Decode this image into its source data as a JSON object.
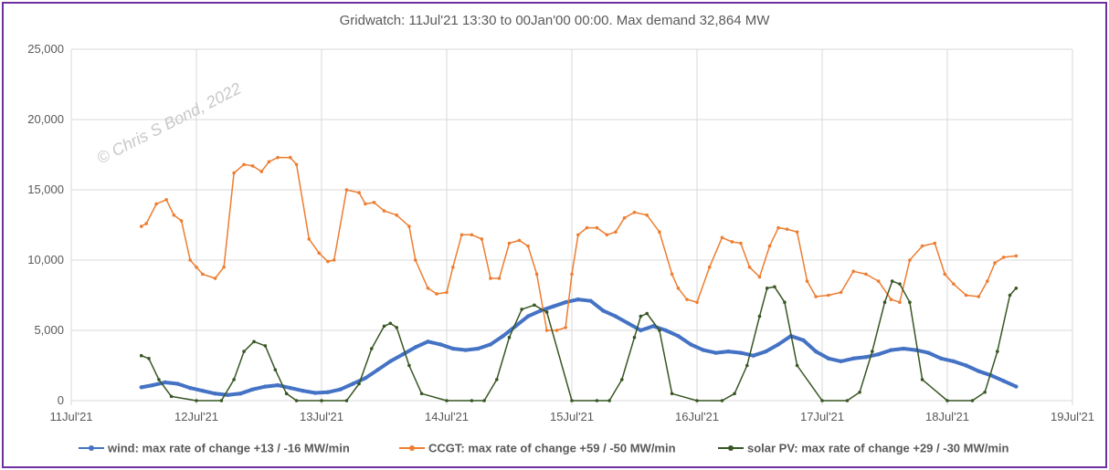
{
  "chart_data": {
    "type": "line",
    "title": "Gridwatch:  11Jul'21 13:30  to 00Jan'00 00:00.   Max demand 32,864 MW",
    "watermark": "© Chris S Bond, 2022",
    "ylim": [
      0,
      25000
    ],
    "yticks": [
      "0",
      "5,000",
      "10,000",
      "15,000",
      "20,000",
      "25,000"
    ],
    "ytick_values": [
      0,
      5000,
      10000,
      15000,
      20000,
      25000
    ],
    "xlim": [
      0,
      8
    ],
    "xticks": [
      "11Jul'21",
      "12Jul'21",
      "13Jul'21",
      "14Jul'21",
      "15Jul'21",
      "16Jul'21",
      "17Jul'21",
      "18Jul'21",
      "19Jul'21"
    ],
    "grid": true,
    "legend_position": "bottom",
    "series": [
      {
        "name": "wind: max rate of change +13 / -16 MW/min",
        "color": "#4472c4",
        "x": [
          0.56,
          0.65,
          0.75,
          0.85,
          0.95,
          1.05,
          1.15,
          1.25,
          1.35,
          1.45,
          1.55,
          1.65,
          1.75,
          1.85,
          1.95,
          2.05,
          2.15,
          2.25,
          2.35,
          2.45,
          2.55,
          2.65,
          2.75,
          2.85,
          2.95,
          3.05,
          3.15,
          3.25,
          3.35,
          3.45,
          3.55,
          3.65,
          3.75,
          3.85,
          3.95,
          4.05,
          4.15,
          4.25,
          4.35,
          4.45,
          4.55,
          4.65,
          4.75,
          4.85,
          4.95,
          5.05,
          5.15,
          5.25,
          5.35,
          5.45,
          5.55,
          5.65,
          5.75,
          5.85,
          5.95,
          6.05,
          6.15,
          6.25,
          6.35,
          6.45,
          6.55,
          6.65,
          6.75,
          6.85,
          6.95,
          7.05,
          7.15,
          7.25,
          7.35,
          7.45,
          7.55
        ],
        "values": [
          950,
          1100,
          1300,
          1200,
          900,
          700,
          500,
          400,
          500,
          800,
          1000,
          1100,
          900,
          700,
          550,
          600,
          800,
          1200,
          1600,
          2200,
          2800,
          3300,
          3800,
          4200,
          4000,
          3700,
          3600,
          3700,
          4000,
          4600,
          5300,
          6000,
          6400,
          6700,
          7000,
          7200,
          7100,
          6400,
          6000,
          5500,
          5000,
          5300,
          5000,
          4600,
          4000,
          3600,
          3400,
          3500,
          3400,
          3200,
          3500,
          4000,
          4600,
          4300,
          3500,
          3000,
          2800,
          3000,
          3100,
          3300,
          3600,
          3700,
          3600,
          3400,
          3000,
          2800,
          2500,
          2100,
          1800,
          1400,
          1000
        ]
      },
      {
        "name": "CCGT: max rate of change +59 / -50 MW/min",
        "color": "#ed7d31",
        "x": [
          0.56,
          0.6,
          0.68,
          0.76,
          0.82,
          0.88,
          0.95,
          1.0,
          1.05,
          1.15,
          1.22,
          1.3,
          1.38,
          1.45,
          1.52,
          1.58,
          1.65,
          1.75,
          1.8,
          1.9,
          1.98,
          2.05,
          2.1,
          2.2,
          2.3,
          2.35,
          2.42,
          2.5,
          2.6,
          2.7,
          2.75,
          2.85,
          2.92,
          3.0,
          3.05,
          3.12,
          3.2,
          3.28,
          3.35,
          3.42,
          3.5,
          3.58,
          3.65,
          3.72,
          3.8,
          3.88,
          3.95,
          4.0,
          4.05,
          4.12,
          4.2,
          4.28,
          4.35,
          4.42,
          4.5,
          4.6,
          4.7,
          4.8,
          4.85,
          4.92,
          5.0,
          5.1,
          5.2,
          5.28,
          5.35,
          5.42,
          5.5,
          5.58,
          5.65,
          5.72,
          5.8,
          5.88,
          5.95,
          6.05,
          6.15,
          6.25,
          6.35,
          6.45,
          6.55,
          6.62,
          6.7,
          6.8,
          6.9,
          6.98,
          7.05,
          7.15,
          7.25,
          7.32,
          7.38,
          7.45,
          7.55
        ],
        "values": [
          12400,
          12600,
          14000,
          14300,
          13200,
          12800,
          10000,
          9500,
          9000,
          8700,
          9500,
          16200,
          16800,
          16700,
          16300,
          17000,
          17300,
          17300,
          16800,
          11500,
          10500,
          9900,
          10000,
          15000,
          14800,
          14000,
          14100,
          13500,
          13200,
          12400,
          10000,
          8000,
          7600,
          7700,
          9500,
          11800,
          11800,
          11500,
          8700,
          8700,
          11200,
          11400,
          11000,
          9000,
          5000,
          5000,
          5200,
          9000,
          11800,
          12300,
          12300,
          11800,
          12000,
          13000,
          13400,
          13200,
          12000,
          9000,
          8000,
          7200,
          7000,
          9500,
          11600,
          11300,
          11200,
          9500,
          8800,
          11000,
          12300,
          12200,
          12000,
          8500,
          7400,
          7500,
          7700,
          9200,
          9000,
          8500,
          7200,
          7000,
          10000,
          11000,
          11200,
          9000,
          8300,
          7500,
          7400,
          8500,
          9800,
          10200,
          10300
        ]
      },
      {
        "name": "solar PV: max rate of change +29 / -30 MW/min",
        "color": "#375623",
        "x": [
          0.56,
          0.62,
          0.7,
          0.8,
          1.0,
          1.2,
          1.3,
          1.38,
          1.46,
          1.55,
          1.63,
          1.72,
          1.8,
          2.0,
          2.2,
          2.3,
          2.4,
          2.5,
          2.55,
          2.6,
          2.7,
          2.8,
          3.0,
          3.2,
          3.3,
          3.4,
          3.5,
          3.6,
          3.7,
          3.8,
          4.0,
          4.2,
          4.3,
          4.4,
          4.5,
          4.55,
          4.6,
          4.7,
          4.8,
          5.0,
          5.2,
          5.3,
          5.4,
          5.5,
          5.56,
          5.62,
          5.7,
          5.8,
          6.0,
          6.2,
          6.3,
          6.4,
          6.5,
          6.56,
          6.62,
          6.7,
          6.8,
          7.0,
          7.2,
          7.3,
          7.4,
          7.5,
          7.55
        ],
        "values": [
          3200,
          3000,
          1500,
          300,
          0,
          0,
          1500,
          3500,
          4200,
          3900,
          2200,
          500,
          0,
          0,
          0,
          1200,
          3700,
          5300,
          5500,
          5200,
          2500,
          500,
          0,
          0,
          0,
          1500,
          4500,
          6500,
          6800,
          6300,
          0,
          0,
          0,
          1500,
          4500,
          6000,
          6200,
          5000,
          500,
          0,
          0,
          500,
          2500,
          6000,
          8000,
          8100,
          7000,
          2500,
          0,
          0,
          600,
          3500,
          7000,
          8500,
          8300,
          7000,
          1500,
          0,
          0,
          600,
          3500,
          7500,
          8000
        ]
      }
    ]
  }
}
